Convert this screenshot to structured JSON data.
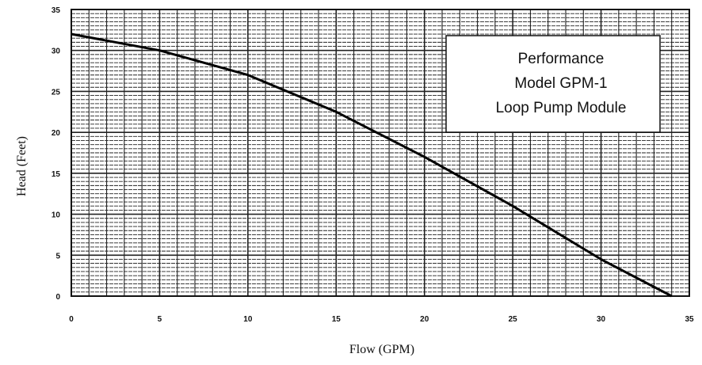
{
  "chart_data": {
    "type": "line",
    "xlabel": "Flow (GPM)",
    "ylabel": "Head (Feet)",
    "xlim": [
      0,
      35
    ],
    "ylim": [
      0,
      35
    ],
    "x_ticks": [
      0,
      5,
      10,
      15,
      20,
      25,
      30,
      35
    ],
    "y_ticks": [
      0,
      5,
      10,
      15,
      20,
      25,
      30,
      35
    ],
    "grid": true,
    "annotation_lines": [
      "Performance",
      "Model GPM-1",
      "Loop Pump Module"
    ],
    "annotation_placement": "top-right",
    "series": [
      {
        "color": "#000000",
        "x": [
          0,
          5,
          10,
          15,
          20,
          25,
          30,
          34
        ],
        "y": [
          32,
          30,
          27,
          22.5,
          17,
          11,
          4.5,
          0
        ]
      }
    ]
  }
}
